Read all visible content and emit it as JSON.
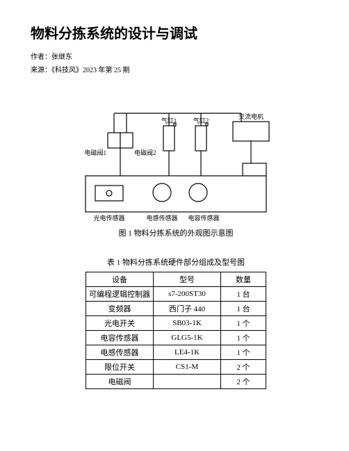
{
  "title": "物料分拣系统的设计与调试",
  "author_line": "作者：张继东",
  "source_line": "来源：《科技风》2023 年第 25 期",
  "figure": {
    "caption": "图 1 物料分拣系统的外观图示意图",
    "labels": {
      "valve1": "电磁阀1",
      "valve2": "电磁阀2",
      "cyl1": "气缸1",
      "cyl2": "气缸2",
      "ac_motor": "交流电机",
      "photo_sensor": "光电传感器",
      "ind_sensor": "电感传感器",
      "cap_sensor": "电容传感器"
    },
    "colors": {
      "stroke": "#000000",
      "fill": "#ffffff",
      "belt_fill": "#ffffff"
    },
    "line_width": 1.2,
    "font_size": 9
  },
  "table": {
    "caption": "表 1 物料分拣系统硬件部分组成及型号图",
    "columns": [
      "设备",
      "型号",
      "数量"
    ],
    "rows": [
      [
        "可编程逻辑控制器",
        "s7-200ST30",
        "1 台"
      ],
      [
        "变频器",
        "西门子 440",
        "1 台"
      ],
      [
        "光电开关",
        "SB03-1K",
        "1 个"
      ],
      [
        "电容传感器",
        "GLG5-1K",
        "1 个"
      ],
      [
        "电感传感器",
        "LE4-1K",
        "1 个"
      ],
      [
        "限位开关",
        "CS1-M",
        "2 个"
      ],
      [
        "电磁阀",
        "",
        "2 个"
      ]
    ]
  }
}
